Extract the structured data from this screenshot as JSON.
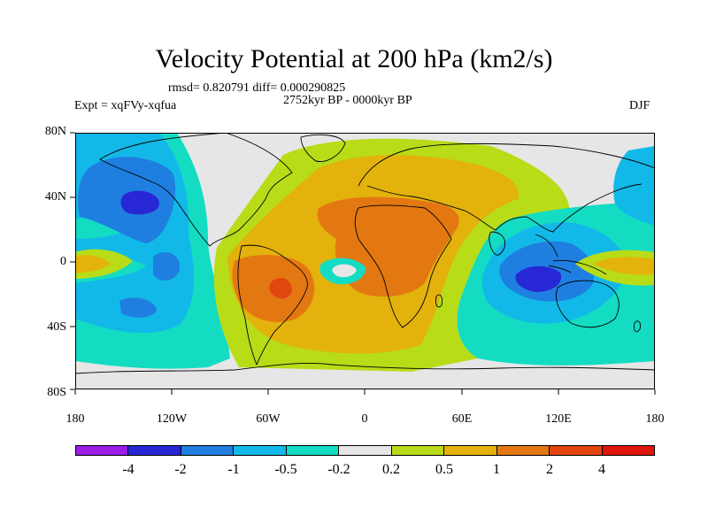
{
  "title": "Velocity Potential at 200 hPa (km2/s)",
  "stats": "rmsd= 0.820791 diff= 0.000290825",
  "period": "2752kyr BP - 0000kyr BP",
  "expt": "Expt = xqFVy-xqfua",
  "season": "DJF",
  "lat_labels": [
    "80N",
    "40N",
    "0",
    "40S",
    "80S"
  ],
  "lon_labels": [
    "180",
    "120W",
    "60W",
    "0",
    "60E",
    "120E",
    "180"
  ],
  "colorbar": {
    "labels": [
      "-4",
      "-2",
      "-1",
      "-0.5",
      "-0.2",
      "0.2",
      "0.5",
      "1",
      "2",
      "4"
    ],
    "colors": [
      "#9a1ee6",
      "#2727d6",
      "#1f7fe0",
      "#12b9e8",
      "#13dcc3",
      "#e6e6e6",
      "#b8dc18",
      "#e3b20c",
      "#e37812",
      "#e2460f",
      "#e0150e"
    ]
  },
  "map_colors": {
    "ocean_bg": "#e6e6e6",
    "neg1": "#13dcc3",
    "neg2": "#12b9e8",
    "neg3": "#1f7fe0",
    "neg4": "#2727d6",
    "pos1": "#b8dc18",
    "pos2": "#e3b20c",
    "pos3": "#e37812",
    "pos4": "#e2460f"
  }
}
